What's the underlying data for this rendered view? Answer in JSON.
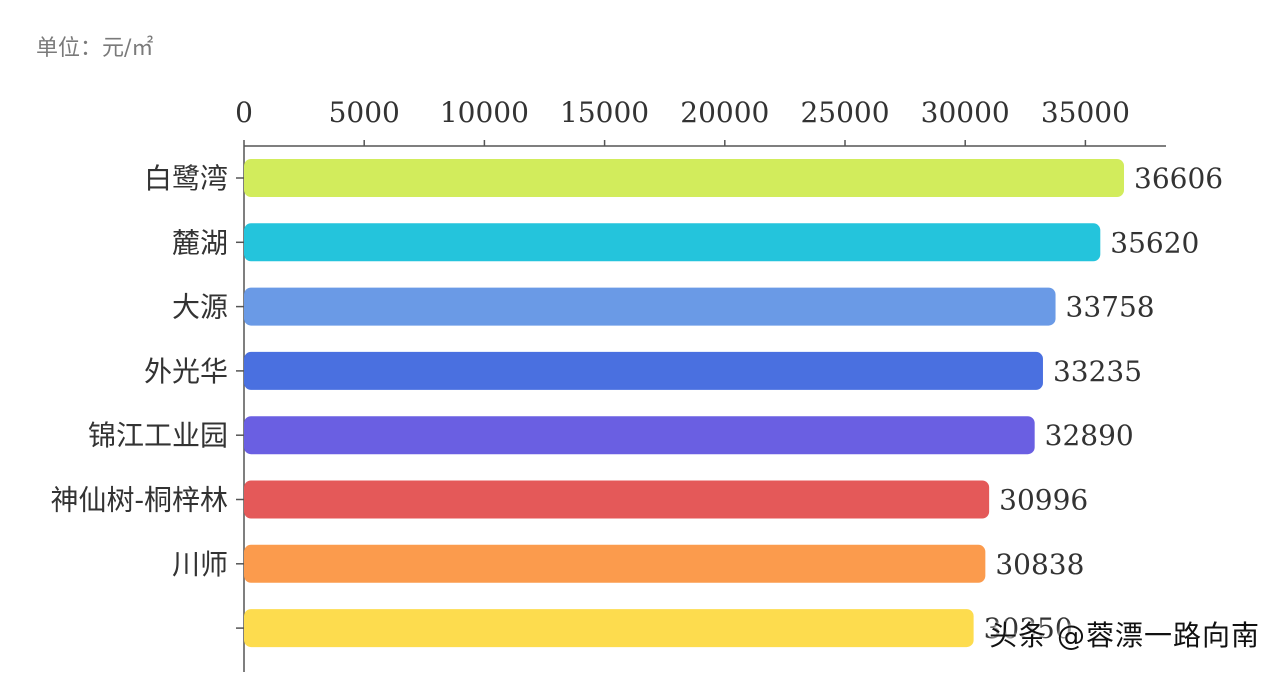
{
  "unit": "单位：元/㎡",
  "watermark": "头条 @蓉漂一路向南",
  "chart_data": {
    "type": "bar",
    "orientation": "horizontal",
    "title": "",
    "xlabel": "",
    "ylabel": "",
    "xlim": [
      0,
      38000
    ],
    "x_ticks": [
      0,
      5000,
      10000,
      15000,
      20000,
      25000,
      30000,
      35000
    ],
    "axis_position": "top",
    "grid": false,
    "categories": [
      "白鹭湾",
      "麓湖",
      "大源",
      "外光华",
      "锦江工业园",
      "神仙树-桐梓林",
      "川师",
      ""
    ],
    "values": [
      36606,
      35620,
      33758,
      33235,
      32890,
      30996,
      30838,
      30350
    ],
    "value_labels": [
      "36606",
      "35620",
      "33758",
      "33235",
      "32890",
      "30996",
      "30838",
      "30350"
    ],
    "colors": [
      "#d2ec5c",
      "#24c4dc",
      "#6a9ae6",
      "#4a70e0",
      "#6a5fe2",
      "#e45959",
      "#fb9b4d",
      "#fddc4e"
    ]
  }
}
